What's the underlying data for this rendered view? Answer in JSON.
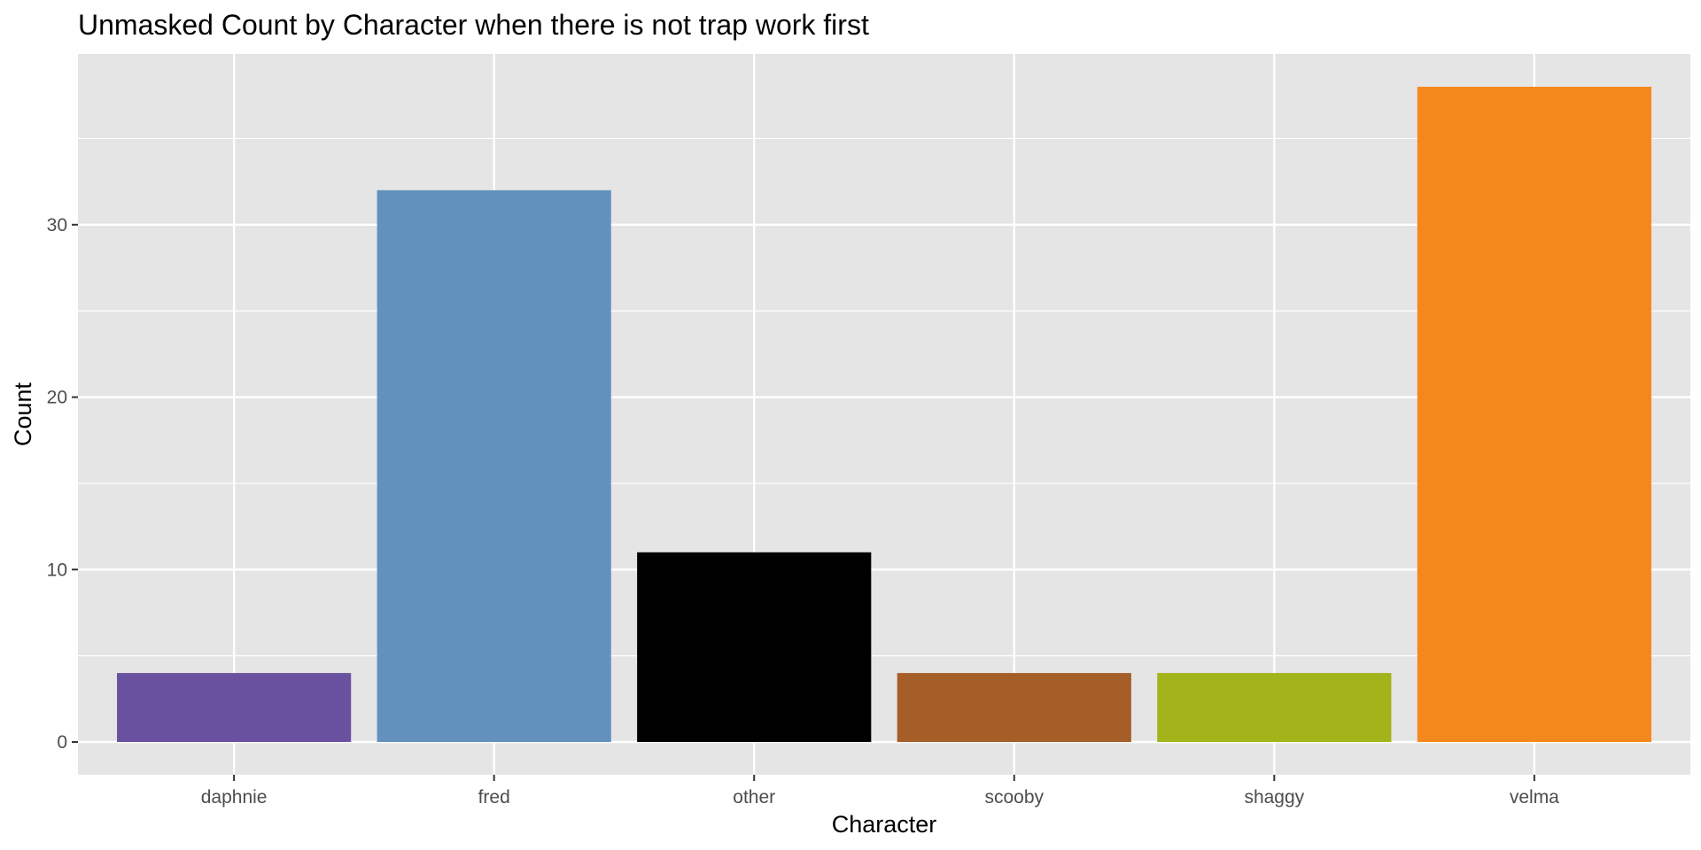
{
  "chart_data": {
    "type": "bar",
    "title": "Unmasked Count by Character when there is not trap work first",
    "xlabel": "Character",
    "ylabel": "Count",
    "categories": [
      "daphnie",
      "fred",
      "other",
      "scooby",
      "shaggy",
      "velma"
    ],
    "values": [
      4,
      32,
      11,
      4,
      4,
      38
    ],
    "colors": [
      "#6A51A0",
      "#6391BE",
      "#000000",
      "#A65E28",
      "#A3B31A",
      "#F5881C"
    ],
    "ylim": [
      -1.9,
      39.9
    ],
    "y_ticks": [
      0,
      10,
      20,
      30
    ],
    "y_tick_labels": [
      "0",
      "10",
      "20",
      "30"
    ],
    "grid": true,
    "legend": "none",
    "panel_background": "#E5E5E5",
    "grid_color": "#FFFFFF"
  }
}
